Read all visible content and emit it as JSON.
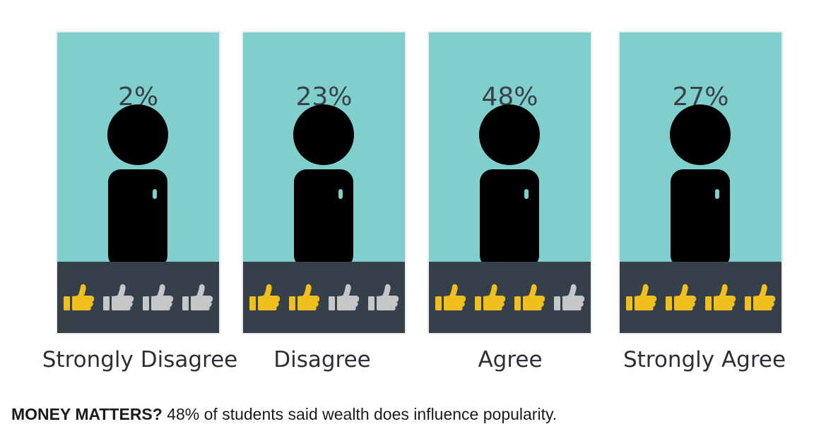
{
  "chart_data": {
    "type": "bar",
    "categories": [
      "Strongly Disagree",
      "Disagree",
      "Agree",
      "Strongly Agree"
    ],
    "values": [
      2,
      23,
      48,
      27
    ],
    "value_labels": [
      "2%",
      "23%",
      "48%",
      "27%"
    ],
    "thumbs_up_filled": [
      1,
      2,
      3,
      4
    ],
    "thumbs_total": 4
  },
  "caption": {
    "lead": "MONEY MATTERS?",
    "text": " 48% of students said wealth does influence popularity."
  },
  "colors": {
    "panel": "#7fd0cd",
    "band": "#36404b",
    "figure": "#000000",
    "thumb_on": "#f0bf1e",
    "thumb_off": "#c4c6c8"
  },
  "icons": {
    "person": "person-icon",
    "thumb": "thumbs-up-icon"
  }
}
